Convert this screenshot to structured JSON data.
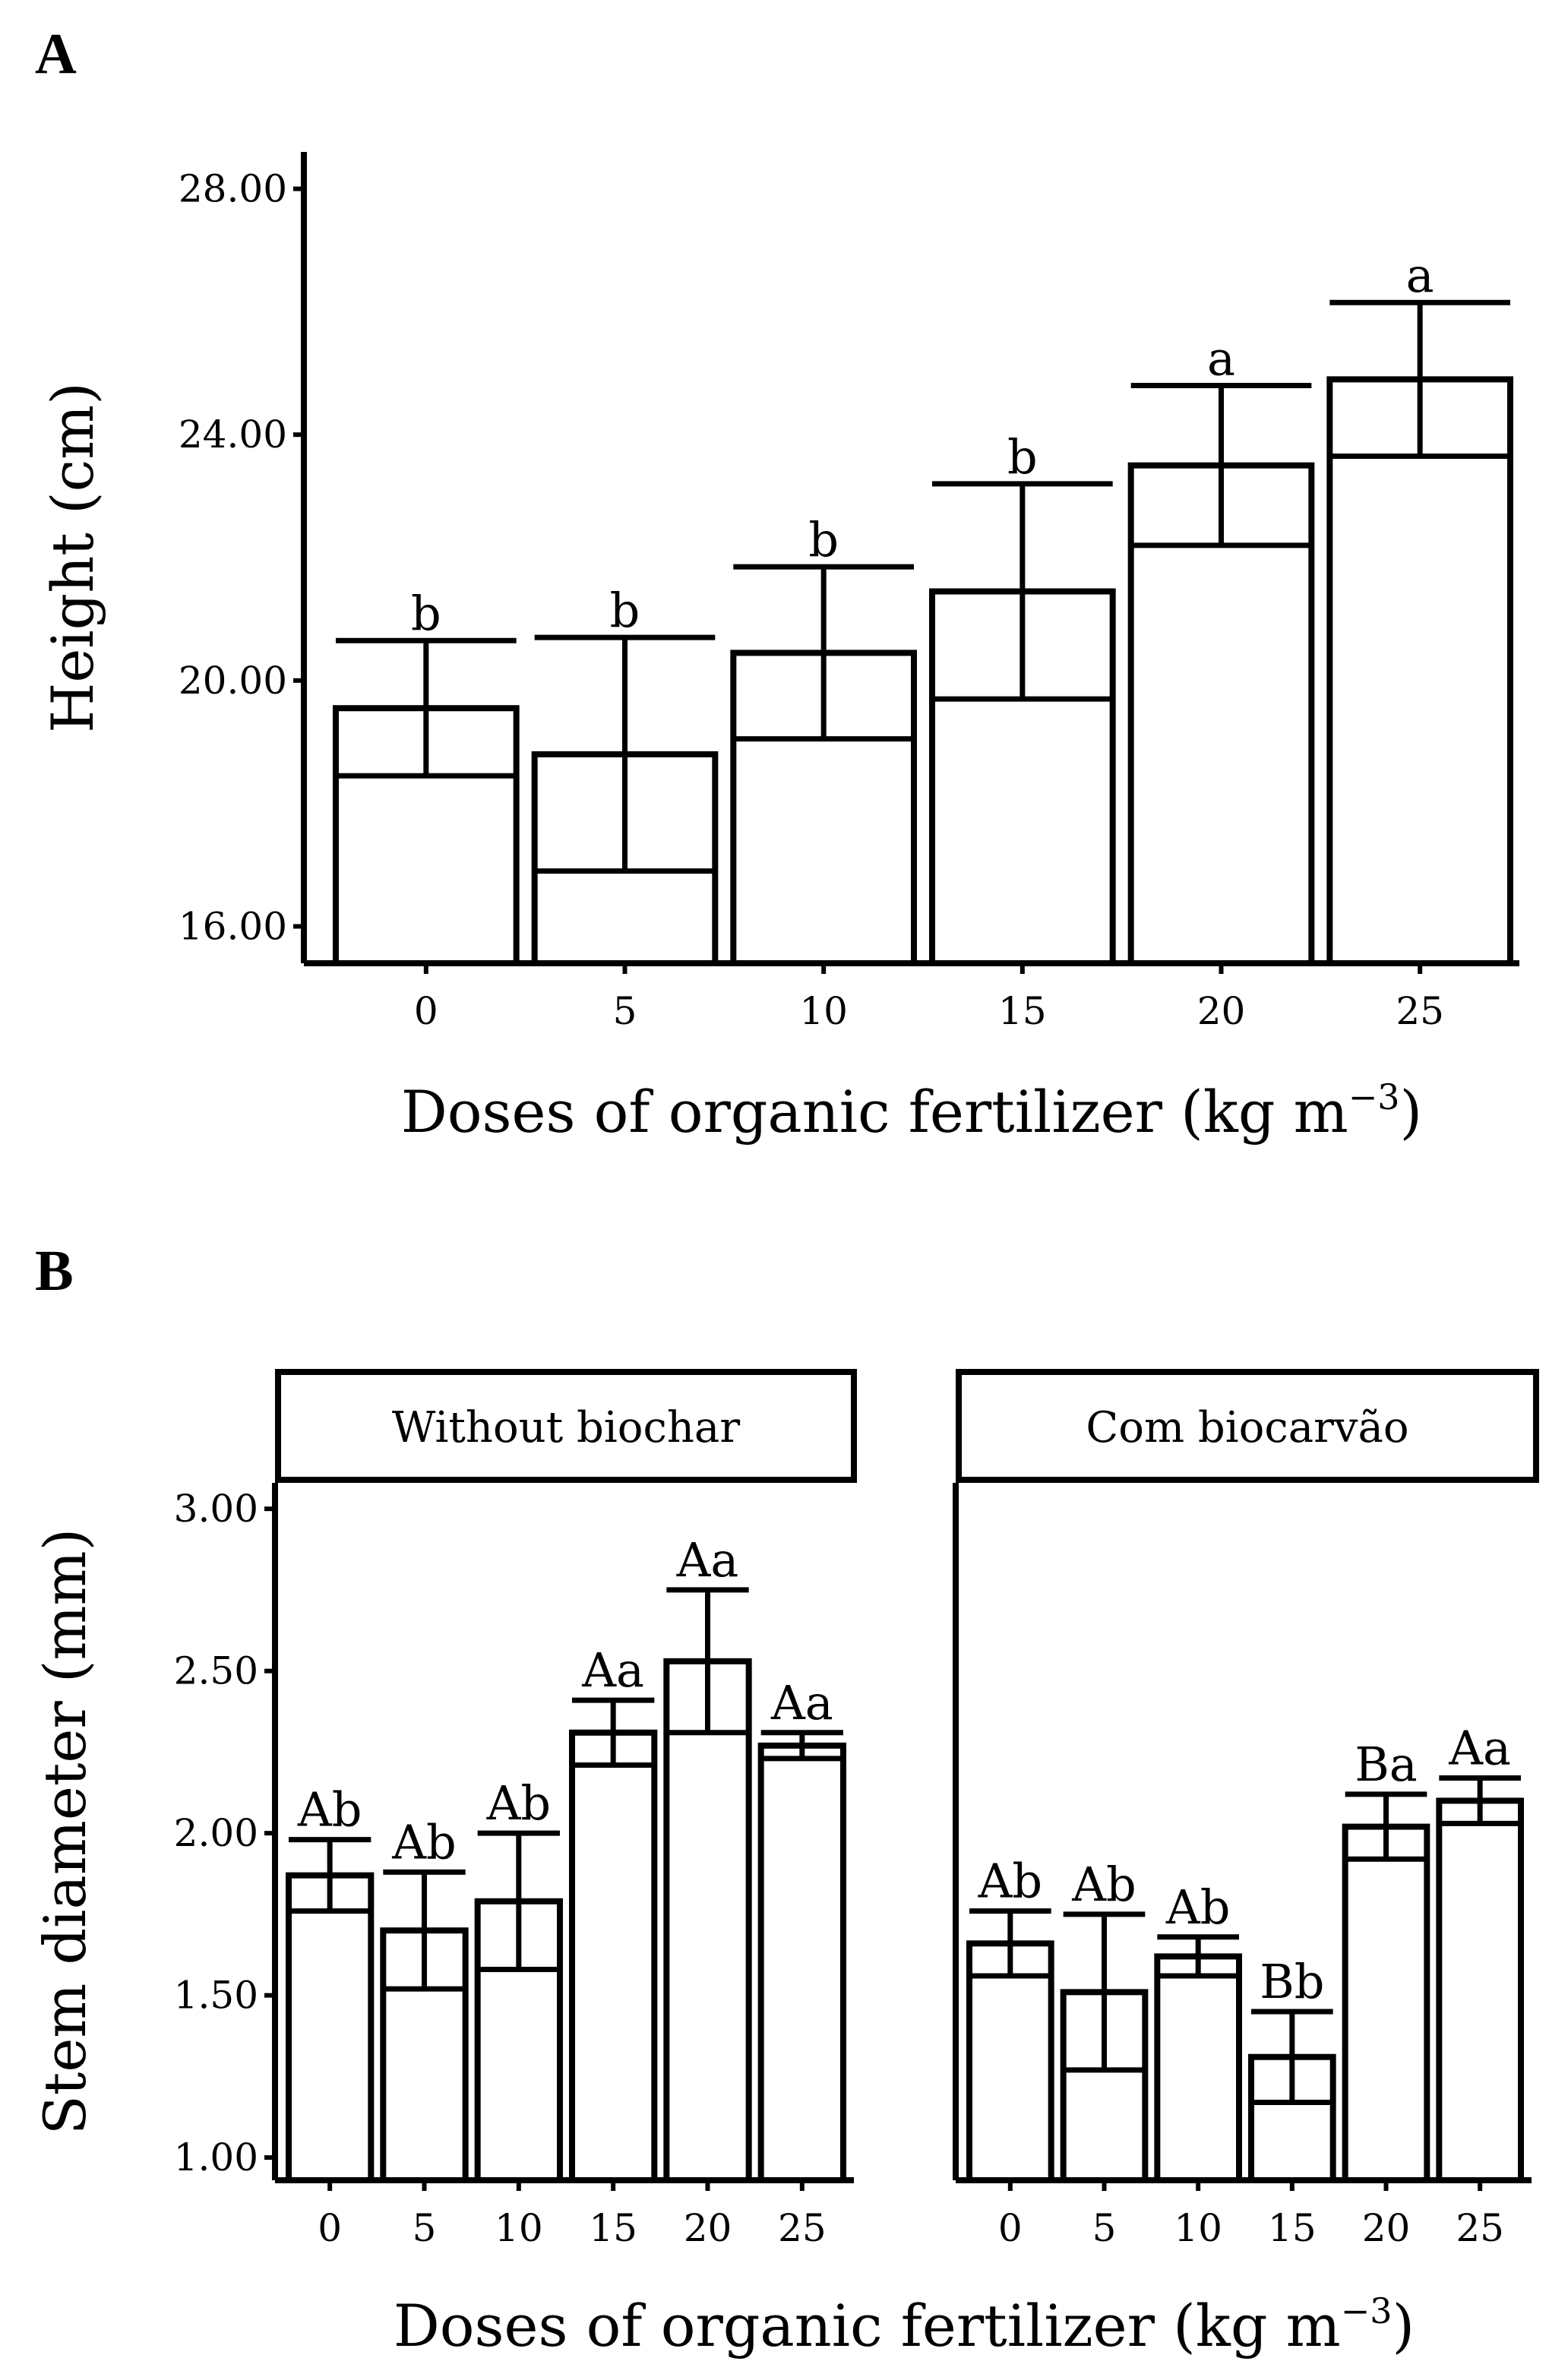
{
  "chart_data": [
    {
      "panel": "A",
      "type": "bar",
      "categories": [
        "0",
        "5",
        "10",
        "15",
        "20",
        "25"
      ],
      "values": [
        19.55,
        18.8,
        20.45,
        21.45,
        23.5,
        24.9
      ],
      "errors": [
        1.1,
        1.9,
        1.4,
        1.75,
        1.3,
        1.25
      ],
      "letters": [
        "b",
        "b",
        "b",
        "b",
        "a",
        "a"
      ],
      "ylim": [
        15.4,
        28.6
      ],
      "yticks": [
        "16.00",
        "20.00",
        "24.00",
        "28.00"
      ],
      "ylabel": "Height (cm)",
      "xlabel": "Doses of organic fertilizer (kg m",
      "xlabel_sup": "−3",
      "xlabel_end": ")"
    },
    {
      "panel": "B",
      "type": "bar",
      "ylim": [
        0.93,
        3.08
      ],
      "yticks": [
        "1.00",
        "1.50",
        "2.00",
        "2.50",
        "3.00"
      ],
      "ylabel": "Stem diameter (mm)",
      "xlabel": "Doses of organic fertilizer (kg m",
      "xlabel_sup": "−3",
      "xlabel_end": ")",
      "facets": [
        {
          "title": "Without biochar",
          "categories": [
            "0",
            "5",
            "10",
            "15",
            "20",
            "25"
          ],
          "values": [
            1.87,
            1.7,
            1.79,
            2.31,
            2.53,
            2.27
          ],
          "errors": [
            0.11,
            0.18,
            0.21,
            0.1,
            0.22,
            0.04
          ],
          "letters": [
            "Ab",
            "Ab",
            "Ab",
            "Aa",
            "Aa",
            "Aa"
          ]
        },
        {
          "title": "Com biocarvão",
          "categories": [
            "0",
            "5",
            "10",
            "15",
            "20",
            "25"
          ],
          "values": [
            1.66,
            1.51,
            1.62,
            1.31,
            2.02,
            2.1
          ],
          "errors": [
            0.1,
            0.24,
            0.06,
            0.14,
            0.1,
            0.07
          ],
          "letters": [
            "Ab",
            "Ab",
            "Ab",
            "Bb",
            "Ba",
            "Aa"
          ]
        }
      ]
    }
  ],
  "panel_labels": {
    "a": "A",
    "b": "B"
  }
}
